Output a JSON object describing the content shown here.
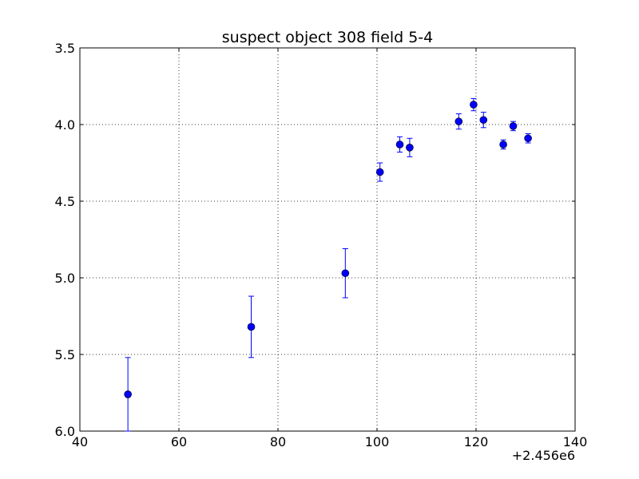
{
  "chart_data": {
    "type": "scatter",
    "title": "suspect object 308 field 5-4",
    "xlabel": "",
    "ylabel": "",
    "xlim": [
      40,
      140
    ],
    "ylim": [
      6.0,
      3.5
    ],
    "y_inverted": true,
    "x_offset_label": "+2.456e6",
    "x_ticks": [
      "40",
      "60",
      "80",
      "100",
      "120",
      "140"
    ],
    "y_ticks": [
      "3.5",
      "4.0",
      "4.5",
      "5.0",
      "5.5",
      "6.0"
    ],
    "grid": true,
    "points": [
      {
        "x": 49.7,
        "y": 5.76,
        "err": 0.24
      },
      {
        "x": 74.6,
        "y": 5.32,
        "err": 0.2
      },
      {
        "x": 93.6,
        "y": 4.97,
        "err": 0.16
      },
      {
        "x": 100.6,
        "y": 4.31,
        "err": 0.06
      },
      {
        "x": 104.6,
        "y": 4.13,
        "err": 0.05
      },
      {
        "x": 106.6,
        "y": 4.15,
        "err": 0.06
      },
      {
        "x": 116.5,
        "y": 3.98,
        "err": 0.05
      },
      {
        "x": 119.5,
        "y": 3.87,
        "err": 0.04
      },
      {
        "x": 121.5,
        "y": 3.97,
        "err": 0.05
      },
      {
        "x": 125.5,
        "y": 4.13,
        "err": 0.03
      },
      {
        "x": 127.5,
        "y": 4.01,
        "err": 0.03
      },
      {
        "x": 130.5,
        "y": 4.09,
        "err": 0.03
      }
    ],
    "marker_color": "#0000ff"
  }
}
